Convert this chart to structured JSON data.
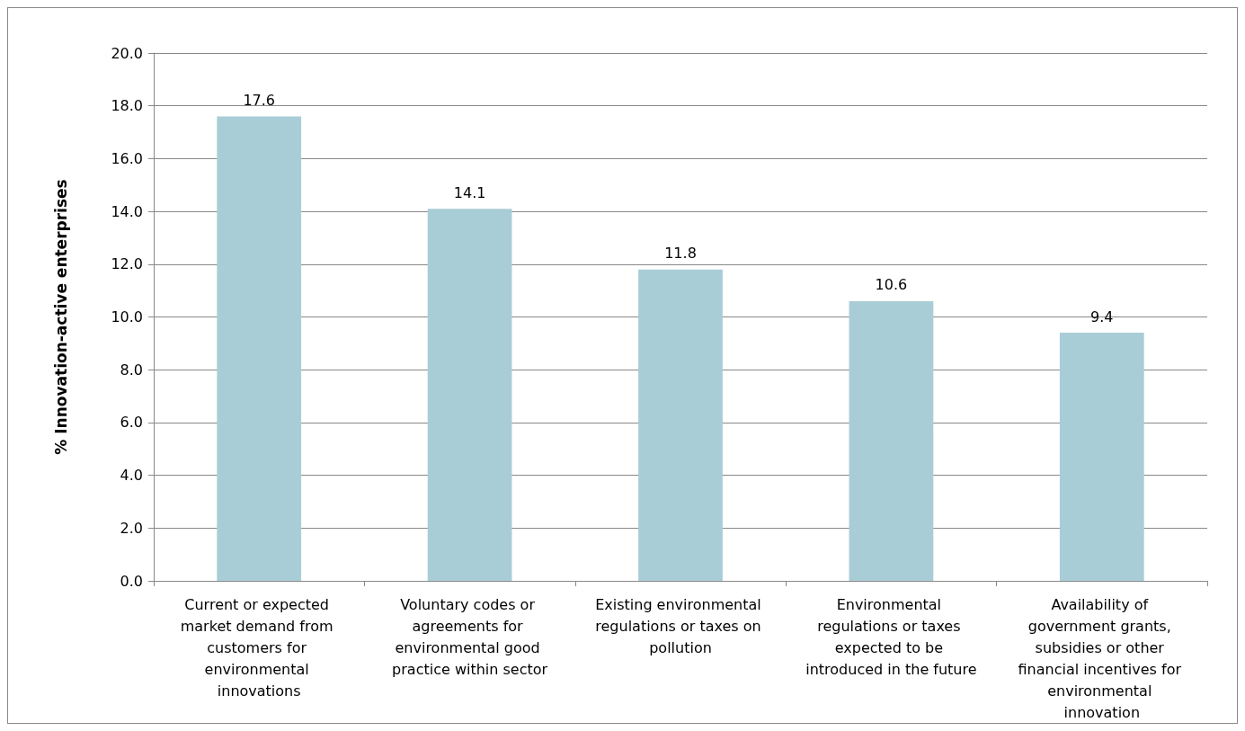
{
  "chart_data": {
    "type": "bar",
    "ylabel": "% Innovation-active enterprises",
    "categories": [
      "Current or expected market demand from customers for environmental innovations",
      "Voluntary codes or agreements for environmental good practice within sector",
      "Existing environmental regulations or taxes on pollution",
      "Environmental regulations or taxes expected to be introduced in the future",
      "Availability of government grants, subsidies or other financial incentives for environmental innovation"
    ],
    "values": [
      17.6,
      14.1,
      11.8,
      10.6,
      9.4
    ],
    "color": "#a9cdd6",
    "data_labels": true,
    "ylim": [
      0,
      20
    ],
    "yticks": [
      {
        "value": 0,
        "label": "0.0"
      },
      {
        "value": 2,
        "label": "2.0"
      },
      {
        "value": 4,
        "label": "4.0"
      },
      {
        "value": 6,
        "label": "6.0"
      },
      {
        "value": 8,
        "label": "8.0"
      },
      {
        "value": 10,
        "label": "10.0"
      },
      {
        "value": 12,
        "label": "12.0"
      },
      {
        "value": 14,
        "label": "14.0"
      },
      {
        "value": 16,
        "label": "16.0"
      },
      {
        "value": 18,
        "label": "18.0"
      },
      {
        "value": 20,
        "label": "20.0"
      }
    ],
    "grid": "y"
  }
}
